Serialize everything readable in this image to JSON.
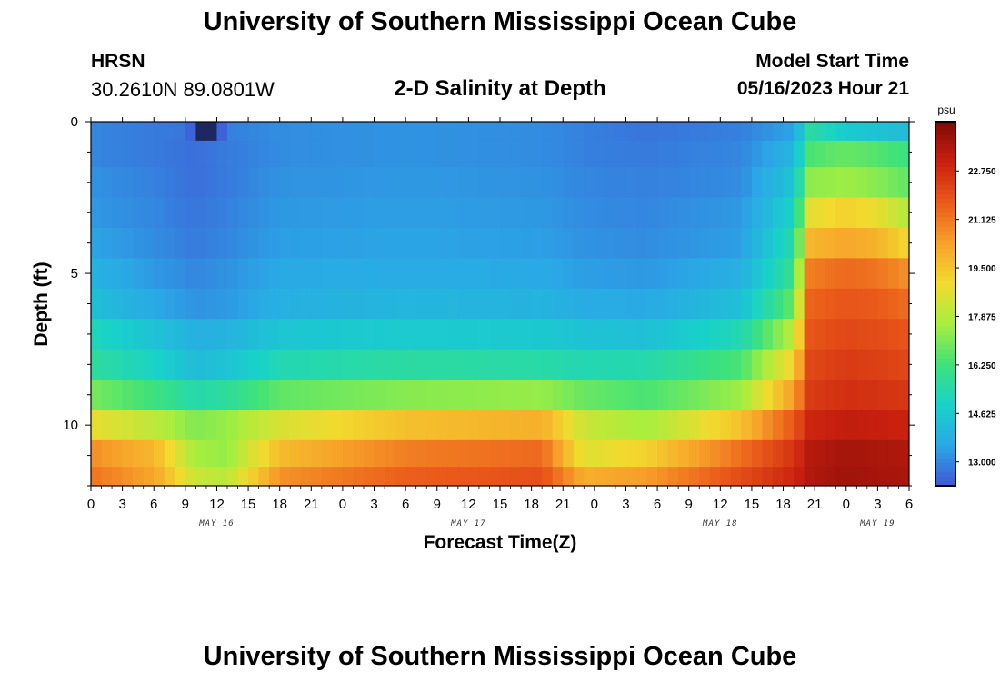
{
  "header": {
    "title": "University of Southern Mississippi Ocean Cube",
    "station": "HRSN",
    "coords": "30.2610N  89.0801W",
    "subtitle": "2-D Salinity at Depth",
    "model_start_label": "Model Start Time",
    "model_start_value": "05/16/2023 Hour 21",
    "footer_title": "University of Southern Mississippi Ocean Cube"
  },
  "chart_data": {
    "type": "heatmap",
    "title": "2-D Salinity at Depth",
    "xlabel": "Forecast Time(Z)",
    "ylabel": "Depth (ft)",
    "x_tick_labels": [
      "0",
      "3",
      "6",
      "9",
      "12",
      "15",
      "18",
      "21",
      "0",
      "3",
      "6",
      "9",
      "12",
      "15",
      "18",
      "21",
      "0",
      "3",
      "6",
      "9",
      "12",
      "15",
      "18",
      "21",
      "0",
      "3",
      "6"
    ],
    "x_range_hours": [
      0,
      78
    ],
    "date_labels": [
      {
        "label": "MAY 16",
        "hour": 12
      },
      {
        "label": "MAY 17",
        "hour": 36
      },
      {
        "label": "MAY 18",
        "hour": 60
      },
      {
        "label": "MAY 19",
        "hour": 75
      }
    ],
    "y_ticks": [
      0,
      5,
      10
    ],
    "y_range_ft": [
      0,
      12
    ],
    "depth_layers_ft": [
      0.25,
      1,
      2,
      3,
      4,
      5,
      6,
      7,
      8,
      9,
      10,
      11,
      11.75
    ],
    "time_keyframes_hours": [
      0,
      6,
      10,
      13,
      18,
      30,
      43,
      47,
      53,
      62,
      67,
      68.5,
      72,
      75,
      78
    ],
    "salinity_psu": [
      [
        13.0,
        12.8,
        12.7,
        12.9,
        13.1,
        13.2,
        13.1,
        12.9,
        12.7,
        12.9,
        13.5,
        15.6,
        14.7,
        14.4,
        14.2
      ],
      [
        13.0,
        12.8,
        12.6,
        12.8,
        13.1,
        13.2,
        13.1,
        12.9,
        12.8,
        13.0,
        14.0,
        16.4,
        16.8,
        16.5,
        16.1
      ],
      [
        13.2,
        12.9,
        12.6,
        12.8,
        13.2,
        13.3,
        13.2,
        13.0,
        12.9,
        13.1,
        14.5,
        17.3,
        17.5,
        17.2,
        16.7
      ],
      [
        13.3,
        13.0,
        12.7,
        12.9,
        13.3,
        13.4,
        13.3,
        13.1,
        13.0,
        13.3,
        15.0,
        18.7,
        19.2,
        18.8,
        17.8
      ],
      [
        13.5,
        13.1,
        12.8,
        13.0,
        13.4,
        13.5,
        13.4,
        13.2,
        13.1,
        13.4,
        15.5,
        19.8,
        20.2,
        19.9,
        19.0
      ],
      [
        13.9,
        13.3,
        13.0,
        13.2,
        13.6,
        13.7,
        13.6,
        13.4,
        13.3,
        13.8,
        16.0,
        21.0,
        21.4,
        21.2,
        20.6
      ],
      [
        14.3,
        13.6,
        13.2,
        13.3,
        13.8,
        14.0,
        13.9,
        13.7,
        13.6,
        14.3,
        16.8,
        21.5,
        21.8,
        21.7,
        21.3
      ],
      [
        15.2,
        14.4,
        13.8,
        13.9,
        14.5,
        14.7,
        14.6,
        14.4,
        14.3,
        15.3,
        18.0,
        21.8,
        22.1,
        22.0,
        21.8
      ],
      [
        15.7,
        15.0,
        14.2,
        14.4,
        15.3,
        15.6,
        15.5,
        15.3,
        15.4,
        16.4,
        19.2,
        22.1,
        22.4,
        22.3,
        22.1
      ],
      [
        17.0,
        16.2,
        15.4,
        15.7,
        16.7,
        17.2,
        17.4,
        16.8,
        16.4,
        17.5,
        20.4,
        22.4,
        22.7,
        22.6,
        22.5
      ],
      [
        18.8,
        18.0,
        17.1,
        17.4,
        18.5,
        19.6,
        20.0,
        18.2,
        17.6,
        19.6,
        21.8,
        22.9,
        23.2,
        23.1,
        23.0
      ],
      [
        20.7,
        19.8,
        17.6,
        17.4,
        19.7,
        21.0,
        21.4,
        18.6,
        19.2,
        21.3,
        22.6,
        23.4,
        23.7,
        23.6,
        23.5
      ],
      [
        21.2,
        20.2,
        18.2,
        18.0,
        20.6,
        21.6,
        21.9,
        20.0,
        20.4,
        22.0,
        22.9,
        23.5,
        23.8,
        23.7,
        23.6
      ]
    ],
    "anomaly": {
      "hour": 11,
      "depth_ft": 0.25,
      "salinity_psu": 11.5
    },
    "colorbar": {
      "unit": "psu",
      "min": 12.2,
      "max": 24.4,
      "tick_values": [
        13.0,
        14.625,
        16.25,
        17.875,
        19.5,
        21.125,
        22.75
      ],
      "tick_labels": [
        "13.000",
        "14.625",
        "16.250",
        "17.875",
        "19.500",
        "21.125",
        "22.750"
      ],
      "colors": [
        "#4157d6",
        "#2aa8e6",
        "#18d2c9",
        "#3fe27a",
        "#a8ee3e",
        "#f2da2e",
        "#f7a12a",
        "#ea5a1a",
        "#c9200f",
        "#7e0a06"
      ]
    }
  }
}
